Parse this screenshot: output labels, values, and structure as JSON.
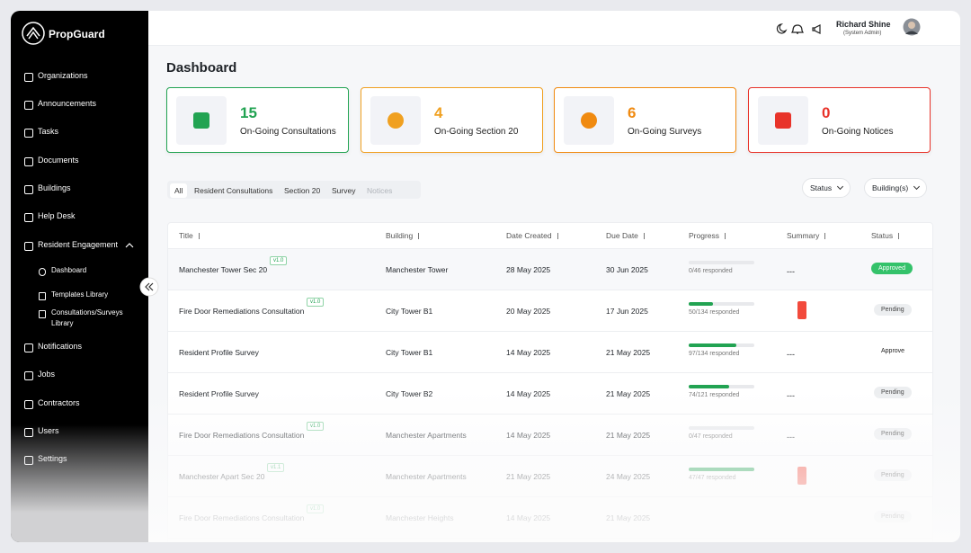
{
  "brand": "PropGuard",
  "nav": {
    "items": [
      "Organizations",
      "Announcements",
      "Tasks",
      "Documents",
      "Buildings",
      "Help Desk",
      "Resident Engagement"
    ],
    "sub": [
      "Dashboard",
      "Templates Library",
      "Consultations/Surveys Library"
    ],
    "more": [
      "Notifications",
      "Jobs",
      "Contractors",
      "Users",
      "Settings"
    ]
  },
  "header": {
    "user": {
      "name": "Richard Shine",
      "role": "(System Admin)"
    }
  },
  "page": {
    "title": "Dashboard"
  },
  "cards": [
    {
      "value": 15,
      "label": "On-Going Consultations",
      "color": "#22a352"
    },
    {
      "value": 4,
      "label": "On-Going Section 20",
      "color": "#f0a020"
    },
    {
      "value": 6,
      "label": "On-Going Surveys",
      "color": "#f08a10"
    },
    {
      "value": 0,
      "label": "On-Going Notices",
      "color": "#e8332a"
    }
  ],
  "tabs": [
    "All",
    "Resident Consultations",
    "Section 20",
    "Survey",
    "Notices"
  ],
  "filters": [
    "Status",
    "Building(s)"
  ],
  "table": {
    "columns": [
      "Title",
      "Building",
      "Date Created",
      "Due Date",
      "Progress",
      "Summary",
      "Status"
    ],
    "rows": [
      {
        "title": "Manchester Tower Sec 20",
        "version": "v1.0",
        "building": "Manchester Tower",
        "created": "28 May 2025",
        "due": "30 Jun 2025",
        "progress": {
          "label": "0/46 responded",
          "done": 0,
          "total": 46
        },
        "summary": "---",
        "status": "Approved",
        "status_style": "success"
      },
      {
        "title": "Fire Door Remediations Consultation",
        "version": "v1.0",
        "building": "City Tower B1",
        "created": "20 May 2025",
        "due": "17 Jun 2025",
        "progress": {
          "label": "50/134 responded",
          "done": 50,
          "total": 134
        },
        "alert": true,
        "status": "Pending",
        "status_style": "neutral"
      },
      {
        "title": "Resident Profile Survey",
        "building": "City Tower B1",
        "created": "14 May 2025",
        "due": "21 May 2025",
        "progress": {
          "label": "97/134 responded",
          "done": 97,
          "total": 134
        },
        "summary": "---",
        "status": "Approve",
        "status_style": "outline"
      },
      {
        "title": "Resident Profile Survey",
        "building": "City Tower B2",
        "created": "14 May 2025",
        "due": "21 May 2025",
        "progress": {
          "label": "74/121 responded",
          "done": 74,
          "total": 121
        },
        "summary": "---",
        "status": "Pending",
        "status_style": "neutral"
      },
      {
        "title": "Fire Door Remediations Consultation",
        "version": "v1.0",
        "building": "Manchester Apartments",
        "created": "14 May 2025",
        "due": "21 May 2025",
        "progress": {
          "label": "0/47 responded",
          "done": 0,
          "total": 47
        },
        "summary": "---",
        "status": "Pending",
        "status_style": "neutral"
      },
      {
        "title": "Manchester Apart Sec 20",
        "version": "v1.1",
        "building": "Manchester Apartments",
        "created": "21 May 2025",
        "due": "24 May 2025",
        "progress": {
          "label": "47/47 responded",
          "done": 47,
          "total": 47
        },
        "alert": true,
        "status": "Pending",
        "status_style": "neutral"
      },
      {
        "title": "Fire Door Remediations Consultation",
        "version": "v1.0",
        "building": "Manchester Heights",
        "created": "14 May 2025",
        "due": "21 May 2025",
        "status": "Pending",
        "status_style": "neutral"
      }
    ]
  }
}
